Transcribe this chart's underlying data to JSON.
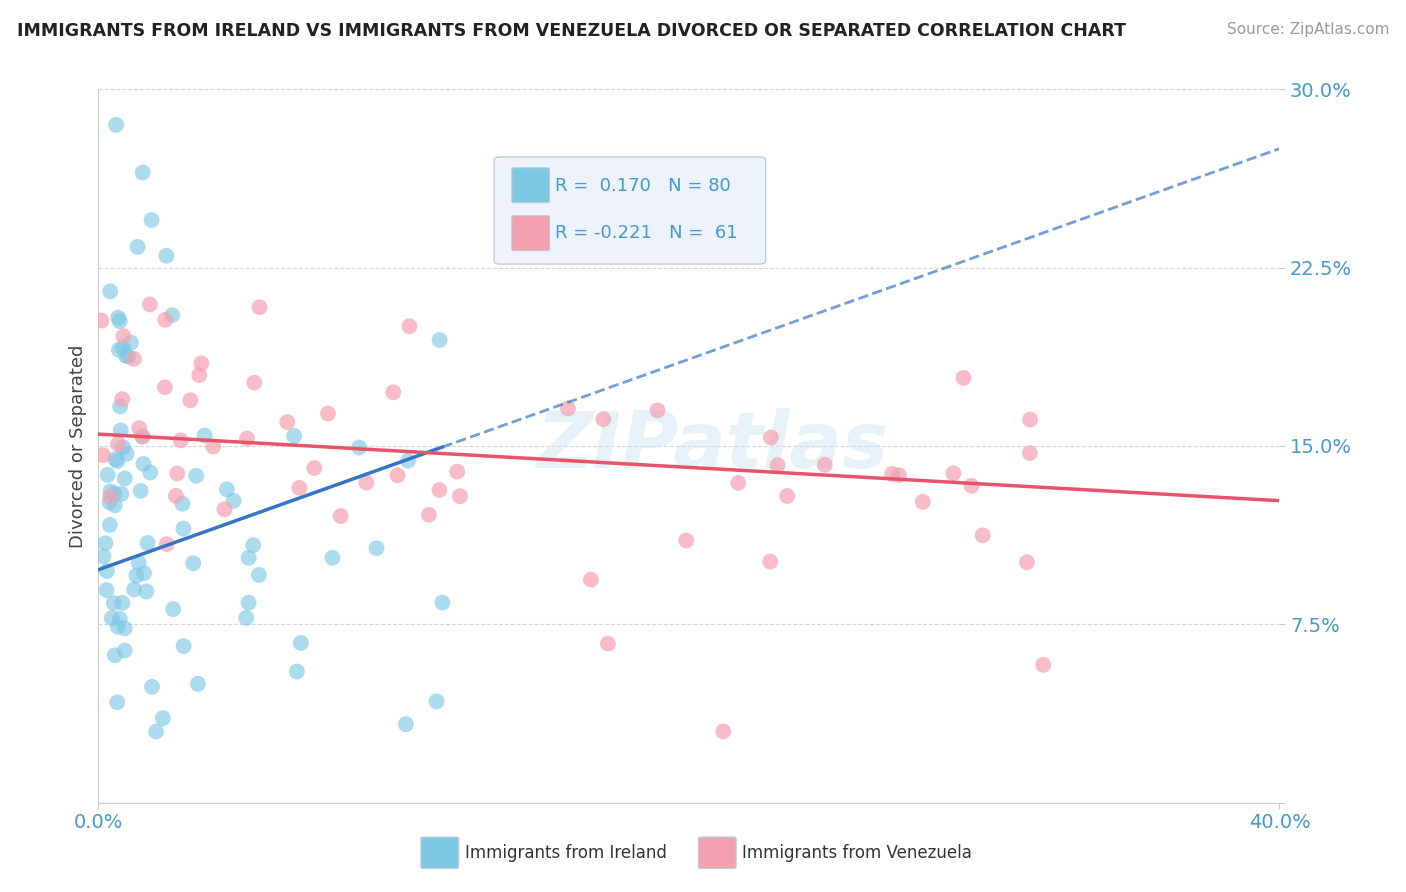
{
  "title": "IMMIGRANTS FROM IRELAND VS IMMIGRANTS FROM VENEZUELA DIVORCED OR SEPARATED CORRELATION CHART",
  "source": "Source: ZipAtlas.com",
  "ylabel": "Divorced or Separated",
  "xlim": [
    0.0,
    0.4
  ],
  "ylim": [
    0.0,
    0.3
  ],
  "yticks": [
    0.0,
    0.075,
    0.15,
    0.225,
    0.3
  ],
  "ytick_labels": [
    "",
    "7.5%",
    "15.0%",
    "22.5%",
    "30.0%"
  ],
  "ireland_R": 0.17,
  "ireland_N": 80,
  "venezuela_R": -0.221,
  "venezuela_N": 61,
  "ireland_color": "#7EC8E3",
  "venezuela_color": "#F4A0B0",
  "ireland_line_color": "#3575C5",
  "venezuela_line_color": "#E8536A",
  "grid_color": "#CCCCCC",
  "legend_bg": "#EEF3FB",
  "legend_border": "#BBCCDD",
  "title_color": "#222222",
  "source_color": "#999999",
  "tick_color": "#4499CC",
  "ylabel_color": "#444444",
  "ireland_line_start_y": 0.098,
  "ireland_line_end_y": 0.275,
  "venezuela_line_start_y": 0.155,
  "venezuela_line_end_y": 0.127
}
